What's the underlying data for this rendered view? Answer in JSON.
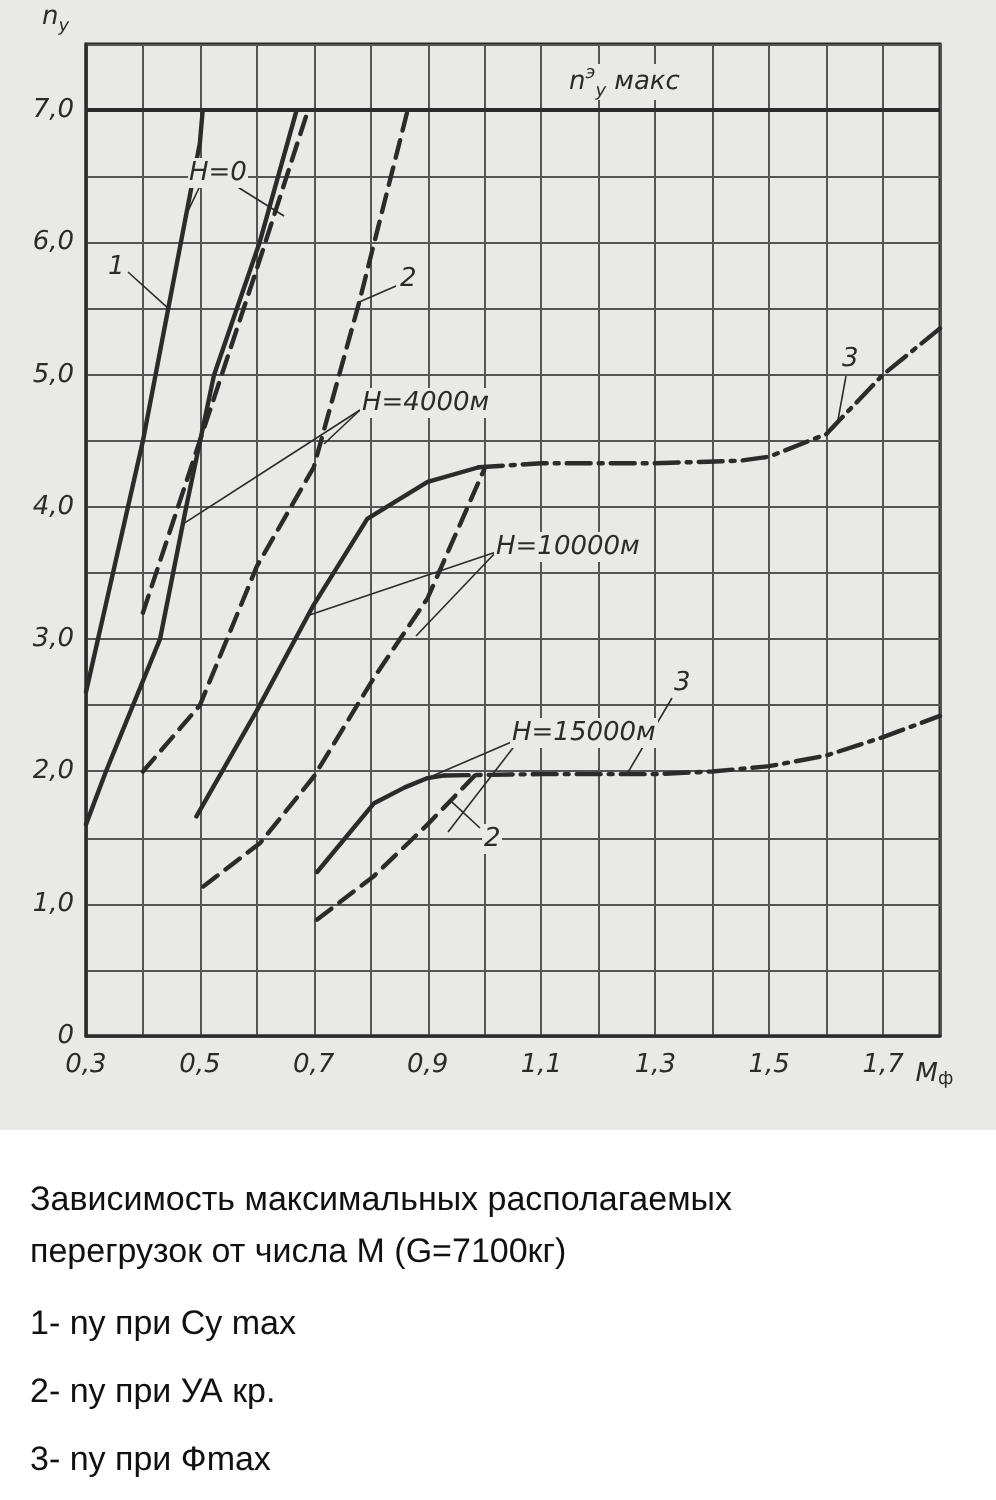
{
  "chart_data": {
    "type": "line",
    "title": "Зависимость максимальных располагаемых перегрузок от числа M (G=7100кг)",
    "xlabel": "M$_{ф}$",
    "ylabel": "n$_{y}$",
    "xlim": [
      0.3,
      1.8
    ],
    "ylim": [
      0,
      7.5
    ],
    "xticks": [
      {
        "value": 0.3,
        "label": "0,3"
      },
      {
        "value": 0.4,
        "label": null
      },
      {
        "value": 0.5,
        "label": "0,5"
      },
      {
        "value": 0.6,
        "label": null
      },
      {
        "value": 0.7,
        "label": "0,7"
      },
      {
        "value": 0.8,
        "label": null
      },
      {
        "value": 0.9,
        "label": "0,9"
      },
      {
        "value": 1.0,
        "label": null
      },
      {
        "value": 1.1,
        "label": "1,1"
      },
      {
        "value": 1.2,
        "label": null
      },
      {
        "value": 1.3,
        "label": "1,3"
      },
      {
        "value": 1.4,
        "label": null
      },
      {
        "value": 1.5,
        "label": "1,5"
      },
      {
        "value": 1.6,
        "label": null
      },
      {
        "value": 1.7,
        "label": "1,7"
      },
      {
        "value": 1.8,
        "label": null
      }
    ],
    "yticks": [
      0,
      {
        "value": 0.5,
        "label": null
      },
      {
        "value": 1,
        "label": "1,0"
      },
      {
        "value": 1.5,
        "label": null
      },
      {
        "value": 2,
        "label": "2,0"
      },
      {
        "value": 2.5,
        "label": null
      },
      {
        "value": 3,
        "label": "3,0"
      },
      {
        "value": 3.5,
        "label": null
      },
      {
        "value": 4,
        "label": "4,0"
      },
      {
        "value": 4.5,
        "label": null
      },
      {
        "value": 5,
        "label": "5,0"
      },
      {
        "value": 5.5,
        "label": null
      },
      {
        "value": 6,
        "label": "6,0"
      },
      {
        "value": 6.5,
        "label": null
      },
      {
        "value": 7,
        "label": "7,0"
      },
      {
        "value": 7.5,
        "label": null
      }
    ],
    "grid": true,
    "marker": "none",
    "ref_lines": [
      {
        "axis": "y",
        "value": 7.0,
        "label": "n$^{э}$$_{y}$ макс",
        "color": "#2b2b2b"
      }
    ],
    "series": [
      {
        "color": "#2b2b2b",
        "line_style": "solid",
        "x": [
          0.3,
          0.4,
          0.5,
          0.505
        ],
        "values": [
          2.6,
          4.5,
          6.75,
          7.0
        ]
      },
      {
        "color": "#2b2b2b",
        "line_style": "dashed",
        "x": [
          0.4,
          0.5,
          0.6,
          0.69
        ],
        "values": [
          3.2,
          4.5,
          5.8,
          7.0
        ]
      },
      {
        "color": "#2b2b2b",
        "line_style": "solid",
        "x": [
          0.3,
          0.335,
          0.43,
          0.476,
          0.525,
          0.605,
          0.67
        ],
        "values": [
          1.6,
          2.0,
          3.0,
          4.0,
          5.0,
          6.0,
          7.0
        ]
      },
      {
        "color": "#2b2b2b",
        "line_style": "dashed",
        "x": [
          0.4,
          0.5,
          0.6,
          0.7,
          0.78,
          0.865
        ],
        "values": [
          2.0,
          2.5,
          3.55,
          4.3,
          5.55,
          7.0
        ]
      },
      {
        "color": "#2b2b2b",
        "line_style": "solid",
        "x": [
          0.494,
          0.6,
          0.7,
          0.794,
          0.9,
          0.99
        ],
        "values": [
          1.66,
          2.46,
          3.26,
          3.91,
          4.19,
          4.3
        ]
      },
      {
        "color": "#2b2b2b",
        "line_style": "dashed",
        "x": [
          0.506,
          0.606,
          0.7,
          0.806,
          0.9,
          1.0
        ],
        "values": [
          1.13,
          1.46,
          1.96,
          2.71,
          3.31,
          4.29
        ]
      },
      {
        "color": "#2b2b2b",
        "line_style": "dashdot",
        "x": [
          0.99,
          1.1,
          1.3,
          1.45,
          1.5,
          1.6,
          1.7,
          1.8
        ],
        "values": [
          4.3,
          4.33,
          4.33,
          4.35,
          4.38,
          4.55,
          5.0,
          5.35
        ]
      },
      {
        "color": "#2b2b2b",
        "line_style": "solid",
        "x": [
          0.706,
          0.806,
          0.86,
          0.9,
          0.93
        ],
        "values": [
          1.24,
          1.76,
          1.88,
          1.95,
          1.97
        ]
      },
      {
        "color": "#2b2b2b",
        "line_style": "dashed",
        "x": [
          0.706,
          0.806,
          0.9,
          0.99
        ],
        "values": [
          0.88,
          1.21,
          1.6,
          2.0
        ]
      },
      {
        "color": "#2b2b2b",
        "line_style": "dashdot",
        "x": [
          0.93,
          1.1,
          1.3,
          1.4,
          1.5,
          1.6,
          1.7,
          1.8
        ],
        "values": [
          1.97,
          1.98,
          1.98,
          2.0,
          2.04,
          2.12,
          2.26,
          2.42
        ]
      }
    ],
    "annotations": [
      {
        "text": "1",
        "x": 0.445,
        "y": 5.5
      },
      {
        "text": "H=0",
        "x": 0.475,
        "y": 6.2
      },
      {
        "text": "2",
        "x": 0.78,
        "y": 5.55
      },
      {
        "text": "H=4000м",
        "x": 0.47,
        "y": 3.87
      },
      {
        "text": "H=10000м",
        "x": 0.69,
        "y": 3.18
      },
      {
        "text": "3",
        "x": 1.62,
        "y": 4.64
      },
      {
        "text": "H=15000м",
        "x": 0.9,
        "y": 1.95
      },
      {
        "text": "3",
        "x": 1.25,
        "y": 1.98
      },
      {
        "text": "2",
        "x": 0.94,
        "y": 1.78
      },
      "1- ny при Cy max",
      "2- ny при УА кр.",
      "3- ny при Фmax"
    ]
  }
}
